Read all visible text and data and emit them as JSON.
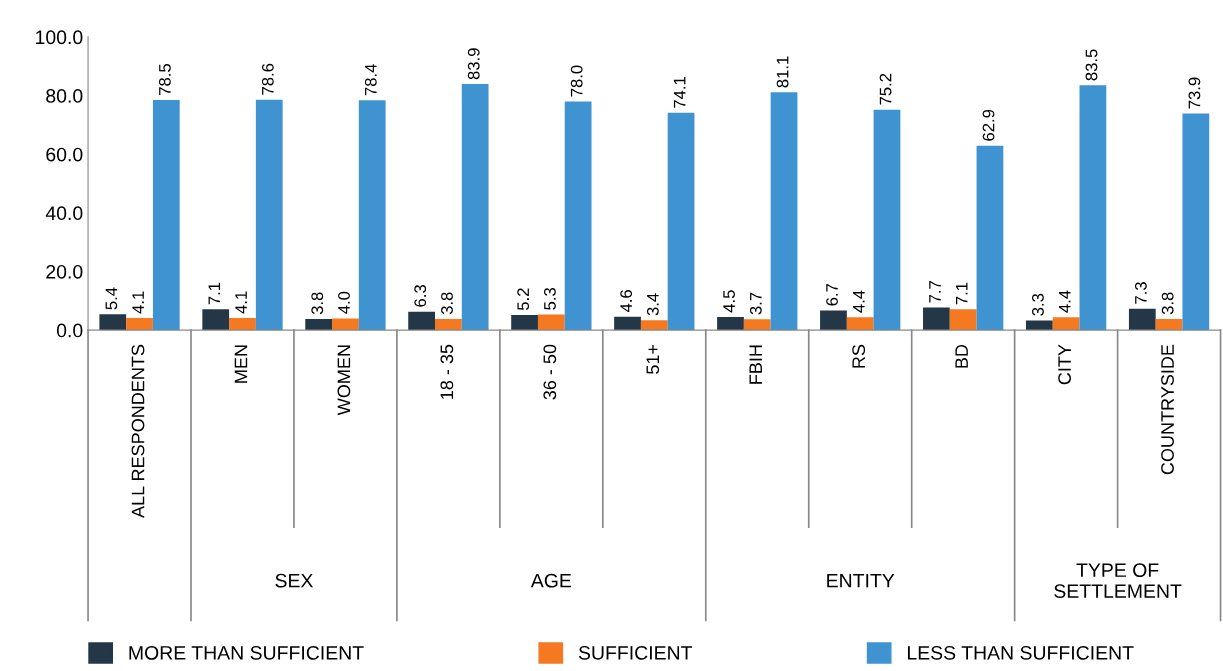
{
  "chart_data": {
    "type": "bar",
    "categories": [
      "ALL RESPONDENTS",
      "MEN",
      "WOMEN",
      "18 - 35",
      "36 - 50",
      "51+",
      "FBIH",
      "RS",
      "BD",
      "CITY",
      "COUNTRYSIDE"
    ],
    "series": [
      {
        "name": "MORE THAN SUFFICIENT",
        "color": "#243746",
        "values": [
          5.4,
          7.1,
          3.8,
          6.3,
          5.2,
          4.6,
          4.5,
          6.7,
          7.7,
          3.3,
          7.3
        ],
        "value_labels": [
          "5.4",
          "7.1",
          "3.8",
          "6.3",
          "5.2",
          "4.6",
          "4.5",
          "6.7",
          "7.7",
          "3.3",
          "7.3"
        ]
      },
      {
        "name": "SUFFICIENT",
        "color": "#f47920",
        "values": [
          4.1,
          4.1,
          4.0,
          3.8,
          5.3,
          3.4,
          3.7,
          4.4,
          7.1,
          4.4,
          3.8
        ],
        "value_labels": [
          "4.1",
          "4.1",
          "4.0",
          "3.8",
          "5.3",
          "3.4",
          "3.7",
          "4.4",
          "7.1",
          "4.4",
          "3.8"
        ]
      },
      {
        "name": "LESS THAN SUFFICIENT",
        "color": "#3f93d0",
        "values": [
          78.5,
          78.6,
          78.4,
          83.9,
          78.0,
          74.1,
          81.1,
          75.2,
          62.9,
          83.5,
          73.9
        ],
        "value_labels": [
          "78.5",
          "78.6",
          "78.4",
          "83.9",
          "78.0",
          "74.1",
          "81.1",
          "75.2",
          "62.9",
          "83.5",
          "73.9"
        ]
      }
    ],
    "ylim": [
      0,
      100
    ],
    "yticks": [
      {
        "value": 0,
        "label": "0.0"
      },
      {
        "value": 20,
        "label": "20.0"
      },
      {
        "value": 40,
        "label": "40.0"
      },
      {
        "value": 60,
        "label": "60.0"
      },
      {
        "value": 80,
        "label": "80.0"
      },
      {
        "value": 100,
        "label": "100.0"
      }
    ],
    "annotations": [
      "SEX",
      "AGE",
      "ENTITY",
      "TYPE OF\nSETTLEMENT"
    ],
    "legend": "bottom"
  }
}
